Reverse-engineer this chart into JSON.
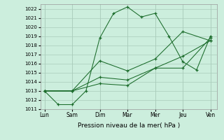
{
  "xlabel": "Pression niveau de la mer( hPa )",
  "background_color": "#cceedd",
  "grid_color": "#aaccbb",
  "line_color": "#1a6b2a",
  "ylim": [
    1011,
    1022.5
  ],
  "yticks": [
    1011,
    1012,
    1013,
    1014,
    1015,
    1016,
    1017,
    1018,
    1019,
    1020,
    1021,
    1022
  ],
  "day_labels": [
    "Lun",
    "Sam",
    "Dim",
    "Mar",
    "Mer",
    "Jeu",
    "Ven"
  ],
  "day_positions": [
    0,
    2,
    4,
    6,
    8,
    10,
    12
  ],
  "series": [
    {
      "x": [
        0,
        1,
        2,
        3,
        4,
        5,
        6,
        7,
        8,
        9,
        10,
        11,
        12
      ],
      "y": [
        1013.0,
        1011.5,
        1011.5,
        1013.0,
        1018.8,
        1021.5,
        1022.2,
        1021.1,
        1021.5,
        1019.0,
        1016.2,
        1015.3,
        1019.0
      ]
    },
    {
      "x": [
        0,
        2,
        4,
        6,
        8,
        10,
        12
      ],
      "y": [
        1013.0,
        1013.0,
        1016.3,
        1015.2,
        1016.5,
        1019.5,
        1018.5
      ]
    },
    {
      "x": [
        0,
        2,
        4,
        6,
        8,
        10,
        12
      ],
      "y": [
        1013.0,
        1013.0,
        1014.5,
        1014.2,
        1015.5,
        1016.8,
        1018.5
      ]
    },
    {
      "x": [
        0,
        2,
        4,
        6,
        8,
        10,
        12
      ],
      "y": [
        1013.0,
        1013.0,
        1013.8,
        1013.6,
        1015.5,
        1015.5,
        1018.8
      ]
    }
  ]
}
